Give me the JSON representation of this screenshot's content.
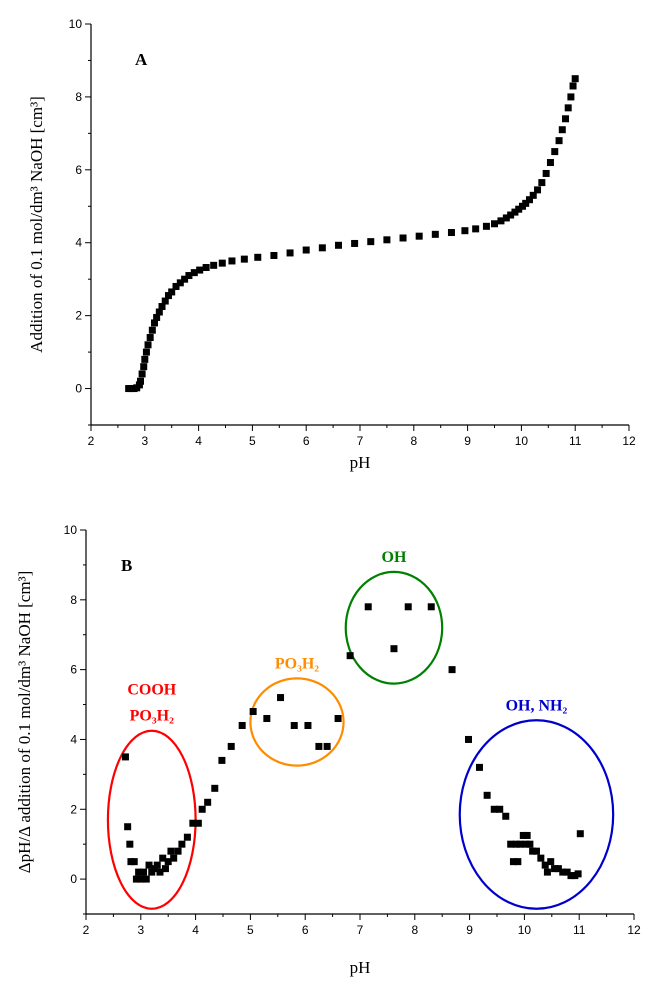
{
  "chart_data": [
    {
      "type": "scatter",
      "panel_label": "A",
      "xlabel": "pH",
      "ylabel": "Addition of 0.1 mol/dm³ NaOH [cm³]",
      "xlim": [
        2,
        12
      ],
      "ylim": [
        -1,
        10
      ],
      "xticks": [
        2,
        3,
        4,
        5,
        6,
        7,
        8,
        9,
        10,
        11,
        12
      ],
      "yticks": [
        0,
        2,
        4,
        6,
        8,
        10
      ],
      "grid": false,
      "series": [
        {
          "marker": "square",
          "color": "#000000",
          "points": [
            [
              2.7,
              0.0
            ],
            [
              2.75,
              0.0
            ],
            [
              2.8,
              0.0
            ],
            [
              2.85,
              0.02
            ],
            [
              2.9,
              0.1
            ],
            [
              2.92,
              0.2
            ],
            [
              2.95,
              0.4
            ],
            [
              2.98,
              0.6
            ],
            [
              3.0,
              0.8
            ],
            [
              3.03,
              1.0
            ],
            [
              3.06,
              1.2
            ],
            [
              3.1,
              1.4
            ],
            [
              3.14,
              1.6
            ],
            [
              3.18,
              1.8
            ],
            [
              3.22,
              1.95
            ],
            [
              3.27,
              2.1
            ],
            [
              3.32,
              2.25
            ],
            [
              3.38,
              2.4
            ],
            [
              3.44,
              2.55
            ],
            [
              3.5,
              2.65
            ],
            [
              3.58,
              2.8
            ],
            [
              3.66,
              2.9
            ],
            [
              3.74,
              3.0
            ],
            [
              3.82,
              3.1
            ],
            [
              3.92,
              3.18
            ],
            [
              4.02,
              3.25
            ],
            [
              4.14,
              3.32
            ],
            [
              4.28,
              3.38
            ],
            [
              4.44,
              3.44
            ],
            [
              4.62,
              3.5
            ],
            [
              4.85,
              3.55
            ],
            [
              5.1,
              3.6
            ],
            [
              5.4,
              3.65
            ],
            [
              5.7,
              3.72
            ],
            [
              6.0,
              3.8
            ],
            [
              6.3,
              3.86
            ],
            [
              6.6,
              3.93
            ],
            [
              6.9,
              3.98
            ],
            [
              7.2,
              4.03
            ],
            [
              7.5,
              4.08
            ],
            [
              7.8,
              4.13
            ],
            [
              8.1,
              4.18
            ],
            [
              8.4,
              4.23
            ],
            [
              8.7,
              4.28
            ],
            [
              8.95,
              4.33
            ],
            [
              9.15,
              4.38
            ],
            [
              9.35,
              4.45
            ],
            [
              9.5,
              4.52
            ],
            [
              9.62,
              4.6
            ],
            [
              9.72,
              4.68
            ],
            [
              9.8,
              4.76
            ],
            [
              9.88,
              4.84
            ],
            [
              9.95,
              4.92
            ],
            [
              10.02,
              5.0
            ],
            [
              10.08,
              5.08
            ],
            [
              10.15,
              5.18
            ],
            [
              10.22,
              5.3
            ],
            [
              10.3,
              5.45
            ],
            [
              10.38,
              5.65
            ],
            [
              10.46,
              5.9
            ],
            [
              10.54,
              6.2
            ],
            [
              10.62,
              6.5
            ],
            [
              10.7,
              6.8
            ],
            [
              10.76,
              7.1
            ],
            [
              10.82,
              7.4
            ],
            [
              10.87,
              7.7
            ],
            [
              10.92,
              8.0
            ],
            [
              10.96,
              8.3
            ],
            [
              11.0,
              8.5
            ]
          ]
        }
      ]
    },
    {
      "type": "scatter",
      "panel_label": "B",
      "xlabel": "pH",
      "ylabel": "ΔpH/Δ addition of 0.1 mol/dm³ NaOH [cm³]",
      "xlim": [
        2,
        12
      ],
      "ylim": [
        -1,
        10
      ],
      "xticks": [
        2,
        3,
        4,
        5,
        6,
        7,
        8,
        9,
        10,
        11,
        12
      ],
      "yticks": [
        0,
        2,
        4,
        6,
        8,
        10
      ],
      "grid": false,
      "series": [
        {
          "marker": "square",
          "color": "#000000",
          "points": [
            [
              2.72,
              3.5
            ],
            [
              2.76,
              1.5
            ],
            [
              2.8,
              1.0
            ],
            [
              2.82,
              0.5
            ],
            [
              2.88,
              0.5
            ],
            [
              2.92,
              0.0
            ],
            [
              2.96,
              0.2
            ],
            [
              3.0,
              0.0
            ],
            [
              3.05,
              0.2
            ],
            [
              3.1,
              0.0
            ],
            [
              3.15,
              0.4
            ],
            [
              3.2,
              0.2
            ],
            [
              3.25,
              0.3
            ],
            [
              3.3,
              0.4
            ],
            [
              3.35,
              0.2
            ],
            [
              3.4,
              0.6
            ],
            [
              3.45,
              0.3
            ],
            [
              3.5,
              0.5
            ],
            [
              3.55,
              0.8
            ],
            [
              3.6,
              0.6
            ],
            [
              3.68,
              0.8
            ],
            [
              3.75,
              1.0
            ],
            [
              3.85,
              1.2
            ],
            [
              3.95,
              1.6
            ],
            [
              4.05,
              1.6
            ],
            [
              4.12,
              2.0
            ],
            [
              4.22,
              2.2
            ],
            [
              4.35,
              2.6
            ],
            [
              4.48,
              3.4
            ],
            [
              4.65,
              3.8
            ],
            [
              4.85,
              4.4
            ],
            [
              5.05,
              4.8
            ],
            [
              5.3,
              4.6
            ],
            [
              5.55,
              5.2
            ],
            [
              5.8,
              4.4
            ],
            [
              6.05,
              4.4
            ],
            [
              6.25,
              3.8
            ],
            [
              6.4,
              3.8
            ],
            [
              6.6,
              4.6
            ],
            [
              6.82,
              6.4
            ],
            [
              7.15,
              7.8
            ],
            [
              7.62,
              6.6
            ],
            [
              7.88,
              7.8
            ],
            [
              8.3,
              7.8
            ],
            [
              8.68,
              6.0
            ],
            [
              8.98,
              4.0
            ],
            [
              9.18,
              3.2
            ],
            [
              9.32,
              2.4
            ],
            [
              9.45,
              2.0
            ],
            [
              9.55,
              2.0
            ],
            [
              9.66,
              1.8
            ],
            [
              9.75,
              1.0
            ],
            [
              9.8,
              0.5
            ],
            [
              9.85,
              1.0
            ],
            [
              9.88,
              0.5
            ],
            [
              9.92,
              1.0
            ],
            [
              9.98,
              1.25
            ],
            [
              10.02,
              1.0
            ],
            [
              10.05,
              1.25
            ],
            [
              10.1,
              1.0
            ],
            [
              10.15,
              0.8
            ],
            [
              10.22,
              0.8
            ],
            [
              10.3,
              0.6
            ],
            [
              10.38,
              0.4
            ],
            [
              10.42,
              0.2
            ],
            [
              10.48,
              0.5
            ],
            [
              10.55,
              0.3
            ],
            [
              10.62,
              0.3
            ],
            [
              10.7,
              0.2
            ],
            [
              10.78,
              0.2
            ],
            [
              10.85,
              0.1
            ],
            [
              10.92,
              0.1
            ],
            [
              10.98,
              0.15
            ],
            [
              11.02,
              1.3
            ]
          ]
        }
      ],
      "annotations": [
        {
          "lines": [
            "COOH",
            "PO₃H₂"
          ],
          "color": "#ff0000",
          "ellipse": {
            "cx": 3.2,
            "cy": 1.7,
            "rx": 0.8,
            "ry": 2.55
          }
        },
        {
          "lines": [
            "PO₃H₂"
          ],
          "color": "#ff8c00",
          "ellipse": {
            "cx": 5.85,
            "cy": 4.5,
            "rx": 0.85,
            "ry": 1.25
          }
        },
        {
          "lines": [
            "OH"
          ],
          "color": "#008000",
          "ellipse": {
            "cx": 7.62,
            "cy": 7.2,
            "rx": 0.88,
            "ry": 1.6
          }
        },
        {
          "lines": [
            "OH, NH₂"
          ],
          "color": "#0000cd",
          "ellipse": {
            "cx": 10.22,
            "cy": 1.85,
            "rx": 1.4,
            "ry": 2.7
          }
        }
      ]
    }
  ]
}
